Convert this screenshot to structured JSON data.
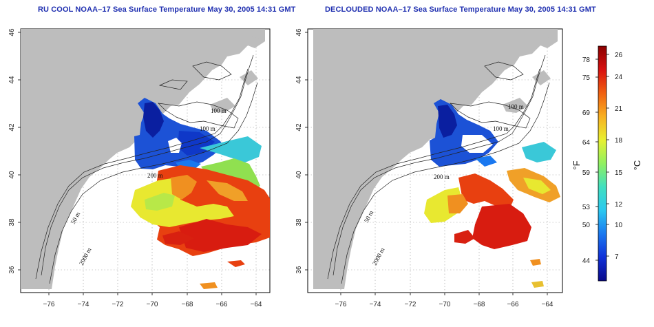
{
  "titles": {
    "left": "RU COOL NOAA–17 Sea Surface Temperature May 30, 2005 14:31 GMT",
    "right": "DECLOUDED NOAA–17 Sea Surface Temperature May 30, 2005 14:31 GMT"
  },
  "axes": {
    "x_ticks": [
      "−76",
      "−74",
      "−72",
      "−70",
      "−68",
      "−66",
      "−64"
    ],
    "y_ticks": [
      "36",
      "38",
      "40",
      "42",
      "44",
      "46"
    ],
    "lon_range": [
      -77,
      -63
    ],
    "lat_range": [
      35,
      46
    ]
  },
  "contour_labels": {
    "m100_a": "100 m",
    "m100_b": "100 m",
    "m200": "200 m",
    "m50": "50 m",
    "m2000": "2000 m"
  },
  "colorbar": {
    "unit_f": "°F",
    "unit_c": "°C",
    "f_ticks": [
      "78",
      "75",
      "69",
      "64",
      "59",
      "53",
      "50",
      "44"
    ],
    "c_ticks": [
      "26",
      "24",
      "21",
      "18",
      "15",
      "12",
      "10",
      "7"
    ],
    "colors": [
      "#0a0a8a",
      "#1030d8",
      "#1a78f0",
      "#2ac8f0",
      "#40e0c0",
      "#90f060",
      "#e8f030",
      "#f8b020",
      "#f06010",
      "#d81010",
      "#8a0000"
    ]
  },
  "colors": {
    "land": "#bdbdbd",
    "ocean": "#ffffff",
    "title": "#1f2fb0"
  }
}
